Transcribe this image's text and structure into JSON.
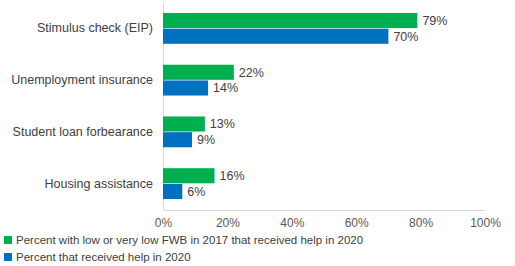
{
  "chart_data": {
    "type": "bar",
    "orientation": "horizontal",
    "categories": [
      "Stimulus check (EIP)",
      "Unemployment insurance",
      "Student loan forbearance",
      "Housing assistance"
    ],
    "series": [
      {
        "name": "Percent with low or very low FWB in 2017 that received help in 2020",
        "color": "#00b050",
        "values": [
          79,
          22,
          13,
          16
        ],
        "value_labels": [
          "79%",
          "22%",
          "13%",
          "16%"
        ]
      },
      {
        "name": "Percent that received help in 2020",
        "color": "#0070c0",
        "values": [
          70,
          14,
          9,
          6
        ],
        "value_labels": [
          "70%",
          "14%",
          "9%",
          "6%"
        ]
      }
    ],
    "xlim": [
      0,
      100
    ],
    "xticks": [
      {
        "value": 0,
        "label": "0%"
      },
      {
        "value": 20,
        "label": "20%"
      },
      {
        "value": 40,
        "label": "40%"
      },
      {
        "value": 60,
        "label": "60%"
      },
      {
        "value": 80,
        "label": "80%"
      },
      {
        "value": 100,
        "label": "100%"
      }
    ],
    "data_labels": true,
    "grid": false,
    "legend": "bottom"
  }
}
